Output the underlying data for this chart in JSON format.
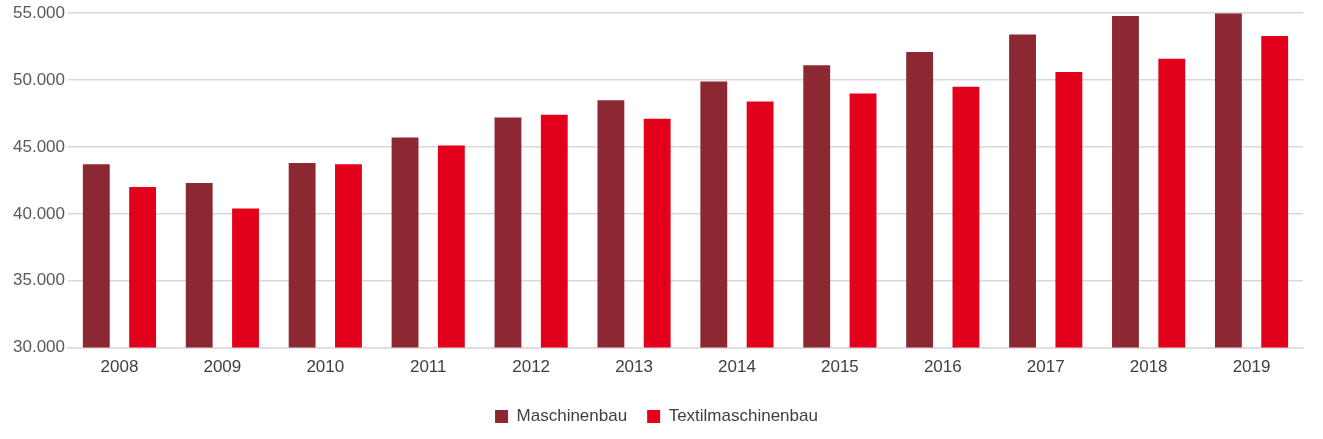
{
  "chart_data": {
    "type": "bar",
    "categories": [
      "2008",
      "2009",
      "2010",
      "2011",
      "2012",
      "2013",
      "2014",
      "2015",
      "2016",
      "2017",
      "2018",
      "2019"
    ],
    "series": [
      {
        "name": "Maschinenbau",
        "color": "#8b2832",
        "values": [
          43700,
          42300,
          43800,
          45700,
          47200,
          48500,
          49900,
          51100,
          52100,
          53400,
          54800,
          55000
        ]
      },
      {
        "name": "Textilmaschinenbau",
        "color": "#e2001a",
        "values": [
          42000,
          40400,
          43700,
          45100,
          47400,
          47100,
          48400,
          49000,
          49500,
          50600,
          51600,
          53300
        ]
      }
    ],
    "ylim": [
      30000,
      55000
    ],
    "yticks": [
      {
        "value": 30000,
        "label": "30.000"
      },
      {
        "value": 35000,
        "label": "35.000"
      },
      {
        "value": 40000,
        "label": "40.000"
      },
      {
        "value": 45000,
        "label": "45.000"
      },
      {
        "value": 50000,
        "label": "50.000"
      },
      {
        "value": 55000,
        "label": "55.000"
      }
    ],
    "grid": "y",
    "legend": "bottom"
  }
}
